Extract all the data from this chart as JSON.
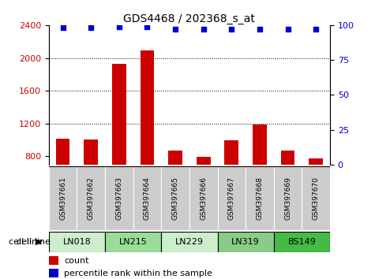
{
  "title": "GDS4468 / 202368_s_at",
  "samples": [
    "GSM397661",
    "GSM397662",
    "GSM397663",
    "GSM397664",
    "GSM397665",
    "GSM397666",
    "GSM397667",
    "GSM397668",
    "GSM397669",
    "GSM397670"
  ],
  "counts": [
    1020,
    1010,
    1930,
    2090,
    870,
    790,
    1000,
    1190,
    870,
    780
  ],
  "percentile_ranks": [
    98,
    98,
    99,
    99,
    97,
    97,
    97,
    97,
    97,
    97
  ],
  "cell_lines": [
    {
      "label": "LN018",
      "start": 0,
      "end": 2,
      "color": "#cceecc"
    },
    {
      "label": "LN215",
      "start": 2,
      "end": 4,
      "color": "#99dd99"
    },
    {
      "label": "LN229",
      "start": 4,
      "end": 6,
      "color": "#cceecc"
    },
    {
      "label": "LN319",
      "start": 6,
      "end": 8,
      "color": "#88cc88"
    },
    {
      "label": "BS149",
      "start": 8,
      "end": 10,
      "color": "#44bb44"
    }
  ],
  "ylim_left": [
    700,
    2400
  ],
  "ylim_right": [
    0,
    100
  ],
  "yticks_left": [
    800,
    1200,
    1600,
    2000,
    2400
  ],
  "yticks_right": [
    0,
    25,
    50,
    75,
    100
  ],
  "bar_color": "#cc0000",
  "dot_color": "#0000cc",
  "bar_bottom": 700,
  "grid_lines": [
    1200,
    1600,
    2000
  ],
  "gray_bg": "#cccccc",
  "bar_width": 0.5
}
